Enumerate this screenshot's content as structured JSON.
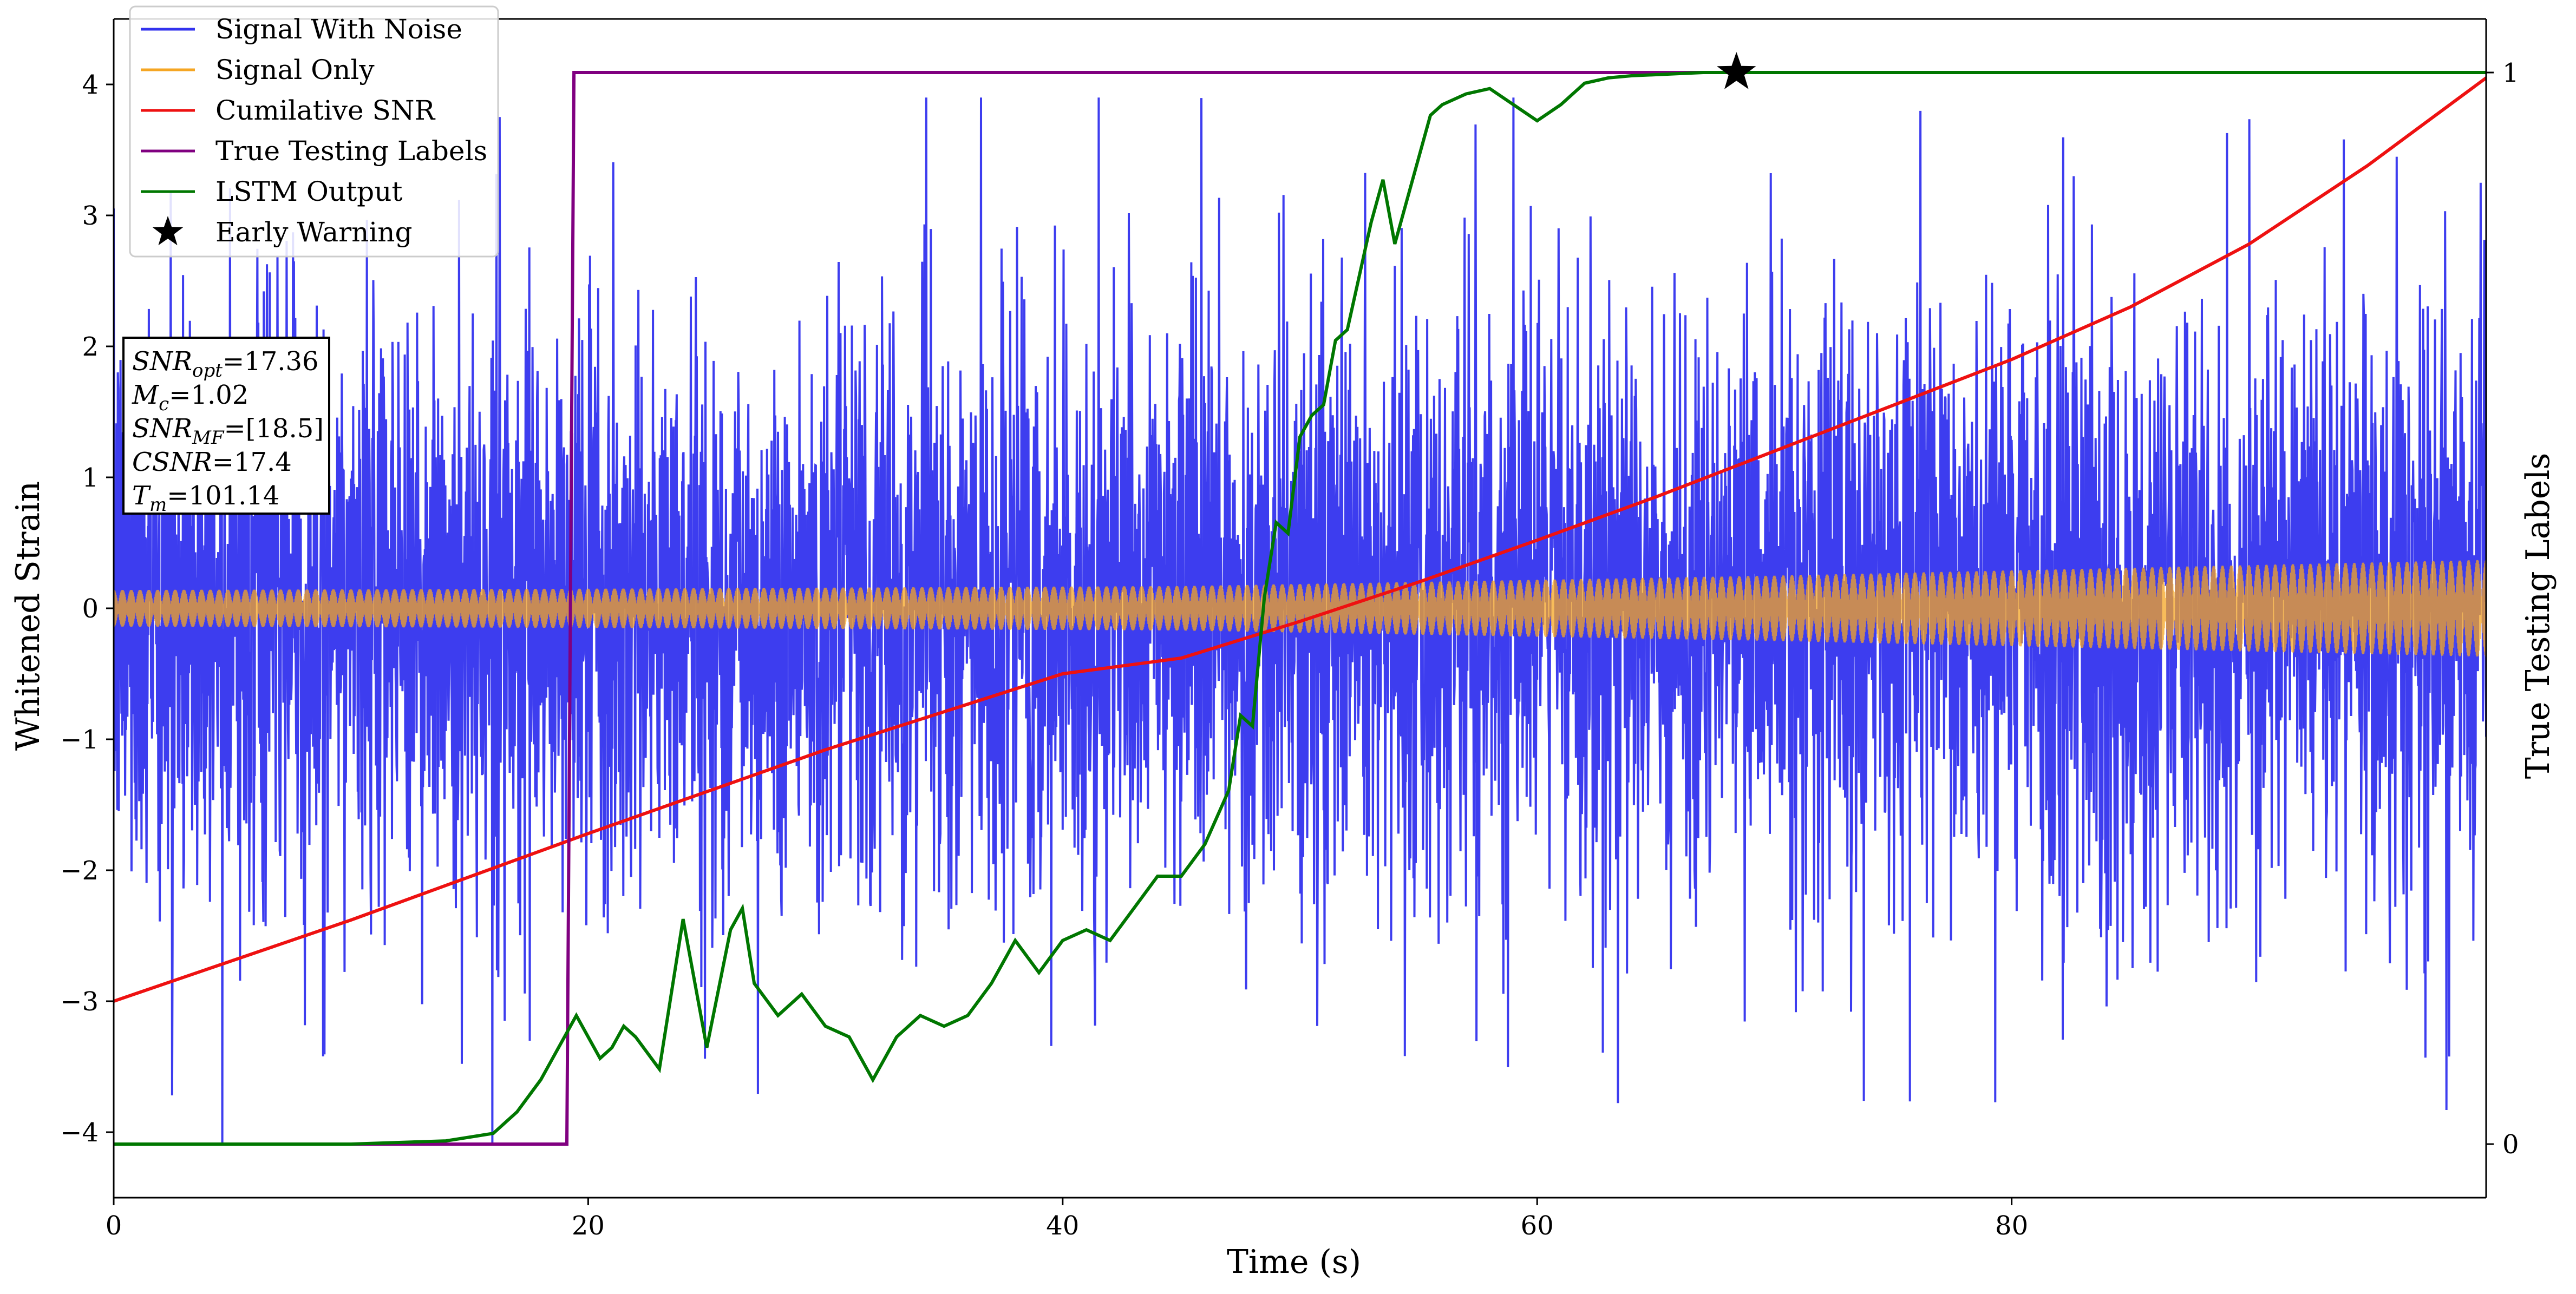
{
  "chart_data": {
    "type": "line",
    "title": "",
    "xlabel": "Time (s)",
    "ylabel": "Whitened Strain",
    "y2label": "True Testing Labels",
    "xlim": [
      0,
      100
    ],
    "ylim": [
      -4.5,
      4.5
    ],
    "y2lim": [
      -0.05,
      1.05
    ],
    "x_ticks": [
      "0",
      "20",
      "40",
      "60",
      "80"
    ],
    "x_tick_values": [
      0,
      20,
      40,
      60,
      80
    ],
    "y_ticks": [
      "−4",
      "−3",
      "−2",
      "−1",
      "0",
      "1",
      "2",
      "3",
      "4"
    ],
    "y_tick_values": [
      -4,
      -3,
      -2,
      -1,
      0,
      1,
      2,
      3,
      4
    ],
    "y2_ticks": [
      "0",
      "1"
    ],
    "y2_tick_values": [
      0,
      1
    ],
    "grid": false,
    "legend_position": "top-left",
    "series": [
      {
        "name": "Signal With Noise",
        "color": "#3333ee",
        "axis": "left",
        "style": "dense noisy trace",
        "envelope": {
          "typical_min": -2.2,
          "typical_max": 2.2,
          "extreme_min": -4.1,
          "extreme_max": 3.9
        }
      },
      {
        "name": "Signal Only",
        "color": "#f5a623",
        "axis": "left",
        "style": "oscillating chirp",
        "amplitude": [
          [
            0,
            0.14
          ],
          [
            20,
            0.15
          ],
          [
            45,
            0.17
          ],
          [
            70,
            0.25
          ],
          [
            100,
            0.37
          ]
        ]
      },
      {
        "name": "Cumilative SNR",
        "color": "#ee1111",
        "axis": "left",
        "x": [
          0,
          10,
          20,
          30,
          40,
          45,
          50,
          55,
          60,
          65,
          70,
          75,
          80,
          85,
          90,
          95,
          100
        ],
        "y": [
          -3.0,
          -2.38,
          -1.72,
          -1.08,
          -0.5,
          -0.38,
          -0.1,
          0.2,
          0.52,
          0.85,
          1.2,
          1.55,
          1.9,
          2.3,
          2.78,
          3.38,
          4.05
        ]
      },
      {
        "name": "True Testing Labels",
        "color": "#800080",
        "axis": "right",
        "x": [
          0,
          19.1,
          19.4,
          100
        ],
        "y": [
          0,
          0,
          1,
          1
        ]
      },
      {
        "name": "LSTM Output",
        "color": "#007700",
        "axis": "right",
        "x": [
          0,
          10,
          14,
          16,
          17,
          18,
          19,
          19.5,
          20,
          20.5,
          21,
          21.5,
          22,
          23,
          24,
          25,
          26,
          26.5,
          27,
          28,
          29,
          30,
          31,
          32,
          33,
          34,
          35,
          36,
          37,
          38,
          39,
          40,
          41,
          42,
          43,
          44,
          45,
          46,
          47,
          47.5,
          48,
          48.5,
          49,
          49.5,
          50,
          50.5,
          51,
          51.5,
          52,
          52.5,
          53,
          53.5,
          54,
          54.5,
          55,
          55.5,
          56,
          57,
          58,
          59,
          60,
          61,
          62,
          63,
          64,
          65,
          66,
          67,
          68,
          69,
          70,
          75,
          80,
          90,
          100
        ],
        "y": [
          0,
          0,
          0.003,
          0.01,
          0.03,
          0.06,
          0.1,
          0.12,
          0.1,
          0.08,
          0.09,
          0.11,
          0.1,
          0.07,
          0.21,
          0.09,
          0.2,
          0.22,
          0.15,
          0.12,
          0.14,
          0.11,
          0.1,
          0.06,
          0.1,
          0.12,
          0.11,
          0.12,
          0.15,
          0.19,
          0.16,
          0.19,
          0.2,
          0.19,
          0.22,
          0.25,
          0.25,
          0.28,
          0.33,
          0.4,
          0.39,
          0.51,
          0.58,
          0.57,
          0.66,
          0.68,
          0.69,
          0.75,
          0.76,
          0.81,
          0.86,
          0.9,
          0.84,
          0.88,
          0.92,
          0.96,
          0.97,
          0.98,
          0.985,
          0.97,
          0.955,
          0.97,
          0.99,
          0.995,
          0.997,
          0.998,
          0.999,
          1,
          1,
          1,
          1,
          1,
          1,
          1,
          1
        ]
      },
      {
        "name": "Early Warning",
        "color": "#000000",
        "axis": "right",
        "marker": "star",
        "x": [
          68.4
        ],
        "y": [
          1.0
        ]
      }
    ],
    "annotation_lines": [
      {
        "main": "SNR",
        "sub": "opt",
        "value": "=17.36"
      },
      {
        "main": "M",
        "sub": "c",
        "value": "=1.02"
      },
      {
        "main": "SNR",
        "sub": "MF",
        "value": "=[18.5]"
      },
      {
        "main": "CSNR",
        "sub": "",
        "value": "=17.4"
      },
      {
        "main": "T",
        "sub": "m",
        "value": "=101.14"
      }
    ]
  }
}
